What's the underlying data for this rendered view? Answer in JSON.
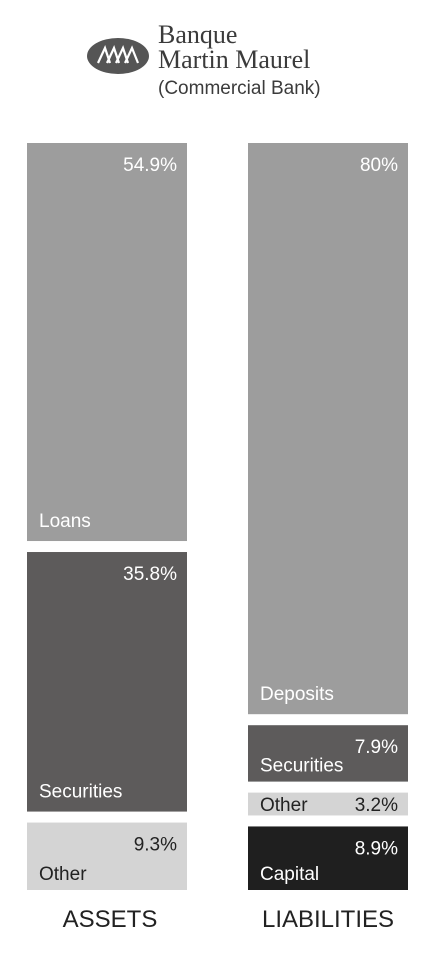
{
  "logo": {
    "name_line1": "Banque",
    "name_line2": "Martin Maurel",
    "subtitle": "(Commercial Bank)"
  },
  "chart_data": {
    "type": "bar",
    "stacked": true,
    "columns": [
      {
        "label": "ASSETS",
        "segments": [
          {
            "name": "Loans",
            "value": 54.9,
            "value_label": "54.9%",
            "color": "#9d9d9d",
            "text_color": "#ffffff"
          },
          {
            "name": "Securities",
            "value": 35.8,
            "value_label": "35.8%",
            "color": "#5d5b5b",
            "text_color": "#ffffff"
          },
          {
            "name": "Other",
            "value": 9.3,
            "value_label": "9.3%",
            "color": "#d4d4d4",
            "text_color": "#222222"
          }
        ]
      },
      {
        "label": "LIABILITIES",
        "segments": [
          {
            "name": "Deposits",
            "value": 80,
            "value_label": "80%",
            "color": "#9d9d9d",
            "text_color": "#ffffff"
          },
          {
            "name": "Securities",
            "value": 7.9,
            "value_label": "7.9%",
            "color": "#5d5b5b",
            "text_color": "#ffffff"
          },
          {
            "name": "Other",
            "value": 3.2,
            "value_label": "3.2%",
            "color": "#d4d4d4",
            "text_color": "#222222"
          },
          {
            "name": "Capital",
            "value": 8.9,
            "value_label": "8.9%",
            "color": "#1f1f1f",
            "text_color": "#ffffff"
          }
        ]
      }
    ]
  }
}
